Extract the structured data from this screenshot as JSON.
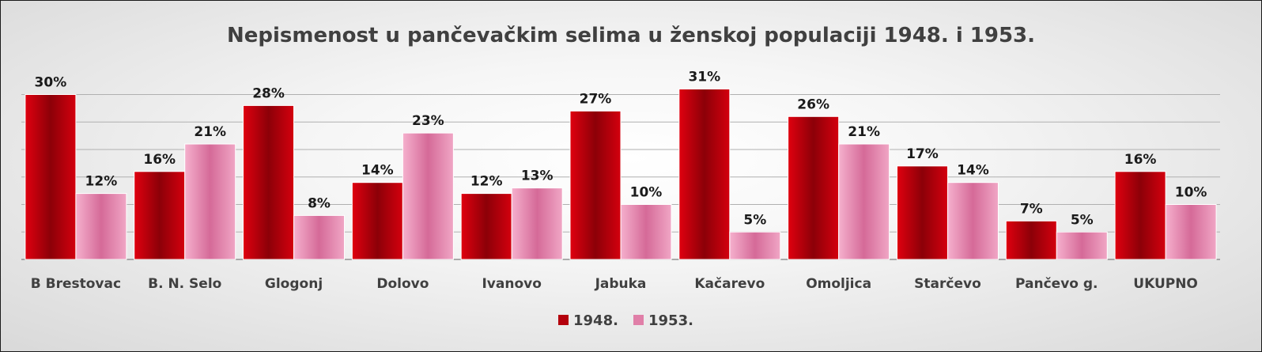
{
  "chart_data": {
    "type": "bar",
    "title": "Nepismenost u pančevačkim selima u ženskoj populaciji 1948. i 1953.",
    "categories": [
      "B Brestovac",
      "B. N. Selo",
      "Glogonj",
      "Dolovo",
      "Ivanovo",
      "Jabuka",
      "Kačarevo",
      "Omoljica",
      "Starčevo",
      "Pančevo g.",
      "UKUPNO"
    ],
    "series": [
      {
        "name": "1948.",
        "values": [
          30,
          16,
          28,
          14,
          12,
          27,
          31,
          26,
          17,
          7,
          16
        ],
        "labels": [
          "30%",
          "16%",
          "28%",
          "14%",
          "12%",
          "27%",
          "31%",
          "26%",
          "17%",
          "7%",
          "16%"
        ],
        "color": "#b4000c"
      },
      {
        "name": "1953.",
        "values": [
          12,
          21,
          8,
          23,
          13,
          10,
          5,
          21,
          14,
          5,
          10
        ],
        "labels": [
          "12%",
          "21%",
          "8%",
          "23%",
          "13%",
          "10%",
          "5%",
          "21%",
          "14%",
          "5%",
          "10%"
        ],
        "color": "#e07fa8"
      }
    ],
    "ylim": [
      0,
      35
    ],
    "grid": true,
    "legend_position": "bottom"
  }
}
